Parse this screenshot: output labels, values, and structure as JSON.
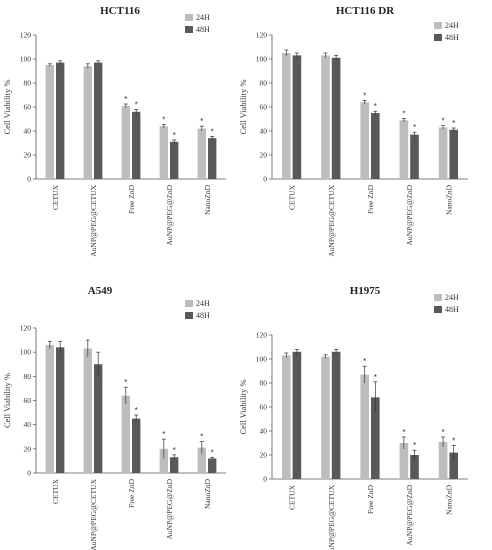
{
  "chart_data": [
    {
      "type": "bar",
      "title": "HCT116",
      "ylabel": "Cell Viability %",
      "ylim": [
        0,
        120
      ],
      "yticks": [
        0,
        20,
        40,
        60,
        80,
        100,
        120
      ],
      "categories": [
        "CETUX",
        "AuNP@PEG@CETUX",
        "Free ZnD",
        "AuNP@PEG@ZnD",
        "NanoZnD"
      ],
      "legend_position": "top-right",
      "series": [
        {
          "name": "24H",
          "color": "#bdbdbd",
          "values": [
            95,
            94,
            61,
            44,
            42
          ],
          "errors": [
            1,
            2,
            1.5,
            1.5,
            2
          ],
          "significant": [
            false,
            false,
            true,
            true,
            true
          ]
        },
        {
          "name": "48H",
          "color": "#595959",
          "values": [
            97,
            97,
            56,
            31,
            34
          ],
          "errors": [
            1.5,
            1.5,
            2,
            1.5,
            1.5
          ],
          "significant": [
            false,
            false,
            true,
            true,
            true
          ]
        }
      ],
      "sig_label": "*"
    },
    {
      "type": "bar",
      "title": "HCT116 DR",
      "ylabel": "Cell Viability %",
      "ylim": [
        0,
        120
      ],
      "yticks": [
        0,
        20,
        40,
        60,
        80,
        100,
        120
      ],
      "categories": [
        "CETUX",
        "AuNP@PEG@CETUX",
        "Free ZnD",
        "AuNP@PEG@ZnD",
        "NanoZnD"
      ],
      "legend_position": "top-right",
      "series": [
        {
          "name": "24H",
          "color": "#bdbdbd",
          "values": [
            105,
            103,
            64,
            49,
            43
          ],
          "errors": [
            2.5,
            2,
            1.5,
            1.5,
            1.5
          ],
          "significant": [
            false,
            false,
            true,
            true,
            true
          ]
        },
        {
          "name": "48H",
          "color": "#595959",
          "values": [
            103,
            101,
            55,
            37,
            41
          ],
          "errors": [
            2,
            2,
            1.5,
            2,
            1.5
          ],
          "significant": [
            false,
            false,
            true,
            true,
            true
          ]
        }
      ],
      "sig_label": "*"
    },
    {
      "type": "bar",
      "title": "A549",
      "ylabel": "Cell Viability %",
      "ylim": [
        0,
        120
      ],
      "yticks": [
        0,
        20,
        40,
        60,
        80,
        100,
        120
      ],
      "categories": [
        "CETUX",
        "AuNP@PEG@CETUX",
        "Free ZnD",
        "AuNP@PEG@ZnD",
        "NanoZnD"
      ],
      "legend_position": "top-right",
      "series": [
        {
          "name": "24H",
          "color": "#bdbdbd",
          "values": [
            106,
            103,
            64,
            20,
            21
          ],
          "errors": [
            3,
            7,
            7,
            8,
            5
          ],
          "significant": [
            false,
            false,
            true,
            true,
            true
          ]
        },
        {
          "name": "48H",
          "color": "#595959",
          "values": [
            104,
            90,
            45,
            13,
            12
          ],
          "errors": [
            5,
            10,
            3,
            2,
            1
          ],
          "significant": [
            false,
            false,
            true,
            true,
            true
          ]
        }
      ],
      "sig_label": "*"
    },
    {
      "type": "bar",
      "title": "H1975",
      "ylabel": "Cell Viability %",
      "ylim": [
        0,
        120
      ],
      "yticks": [
        0,
        20,
        40,
        60,
        80,
        100,
        120
      ],
      "categories": [
        "CETUX",
        "AuNP@PEG@CETUX",
        "Free ZnD",
        "AuNP@PEG@ZnD",
        "NanoZnD"
      ],
      "legend_position": "top-right",
      "series": [
        {
          "name": "24H",
          "color": "#bdbdbd",
          "values": [
            103,
            102,
            87,
            30,
            31
          ],
          "errors": [
            2,
            1.5,
            7,
            5,
            4
          ],
          "significant": [
            false,
            false,
            true,
            true,
            true
          ]
        },
        {
          "name": "48H",
          "color": "#595959",
          "values": [
            106,
            106,
            68,
            20,
            22
          ],
          "errors": [
            2,
            2,
            13,
            4,
            6
          ],
          "significant": [
            false,
            false,
            true,
            true,
            true
          ]
        }
      ],
      "sig_label": "*"
    }
  ]
}
